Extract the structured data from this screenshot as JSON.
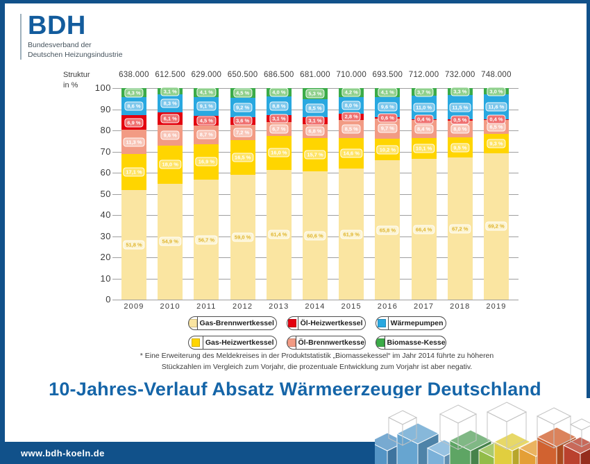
{
  "logo": {
    "acronym": "BDH",
    "subtitle_line1": "Bundesverband der",
    "subtitle_line2": "Deutschen Heizungsindustrie"
  },
  "axis_unit": {
    "line1": "Struktur",
    "line2": "in %"
  },
  "chart_data": {
    "type": "bar",
    "variant": "stacked-percent",
    "title": "10-Jahres-Verlauf Absatz Wärmeerzeuger Deutschland",
    "ylabel": "Struktur in %",
    "ylim": [
      0,
      100
    ],
    "yticks": [
      0,
      10,
      20,
      30,
      40,
      50,
      60,
      70,
      80,
      90,
      100
    ],
    "grid": true,
    "categories": [
      "2009",
      "2010",
      "2011",
      "2012",
      "2013",
      "2014",
      "2015",
      "2016",
      "2017",
      "2018",
      "2019"
    ],
    "totals": [
      "638.000",
      "612.500",
      "629.000",
      "650.500",
      "686.500",
      "681.000",
      "710.000",
      "693.500",
      "712.000",
      "732.000",
      "748.000"
    ],
    "value_suffix": " %",
    "series": [
      {
        "name": "Gas-Brennwertkessel",
        "color": "#FAE5A1",
        "pill_color": "#FCF4D3",
        "label_color": "#DFB42C",
        "values": [
          51.8,
          54.9,
          56.7,
          59.0,
          61.4,
          60.6,
          61.9,
          65.8,
          66.4,
          67.2,
          69.2
        ]
      },
      {
        "name": "Gas-Heizwertkessel",
        "color": "#FFD500",
        "pill_color": "#FFE466",
        "label_color": "#FFFFFF",
        "values": [
          17.1,
          18.0,
          16.9,
          16.5,
          16.0,
          15.7,
          14.6,
          10.2,
          10.1,
          9.5,
          9.3
        ]
      },
      {
        "name": "Öl-Brennwertkessel",
        "color": "#F29B84",
        "pill_color": "#F8C5B8",
        "label_color": "#FFFFFF",
        "values": [
          11.3,
          9.6,
          8.7,
          7.2,
          6.7,
          6.8,
          8.5,
          9.7,
          8.4,
          8.0,
          6.5
        ]
      },
      {
        "name": "Öl-Heizwertkessel",
        "color": "#E3000F",
        "pill_color": "#EF7070",
        "label_color": "#FFFFFF",
        "values": [
          6.9,
          6.1,
          4.5,
          3.6,
          3.1,
          3.1,
          2.8,
          0.6,
          0.4,
          0.5,
          0.4
        ]
      },
      {
        "name": "Wärmepumpen",
        "color": "#29A8E0",
        "pill_color": "#7FC8EC",
        "label_color": "#FFFFFF",
        "values": [
          8.6,
          8.3,
          9.1,
          9.2,
          8.8,
          8.5,
          8.0,
          9.6,
          11.0,
          11.5,
          11.6
        ]
      },
      {
        "name": "Biomasse-Kessel",
        "color": "#3BAB48",
        "pill_color": "#8FD08C",
        "label_color": "#FFFFFF",
        "values": [
          4.3,
          3.1,
          4.1,
          4.5,
          4.0,
          5.3,
          4.2,
          4.1,
          3.7,
          3.3,
          3.0
        ]
      }
    ],
    "legend_position": "bottom"
  },
  "legend": {
    "items": [
      {
        "label": "Gas-Brennwertkessel",
        "color": "#FAE5A1"
      },
      {
        "label": "Öl-Heizwertkessel",
        "color": "#E3000F"
      },
      {
        "label": "Wärmepumpen",
        "color": "#29A8E0"
      },
      {
        "label": "Gas-Heizwertkessel",
        "color": "#FFD500"
      },
      {
        "label": "Öl-Brennwertkessel",
        "color": "#F29B84"
      },
      {
        "label": "Biomasse-Kessel",
        "color": "#3BAB48"
      }
    ]
  },
  "footnote": {
    "line1": "* Eine Erweiterung des Meldekreises in der Produktstatistik „Biomassekessel“ im Jahr 2014 führte zu höheren",
    "line2": "Stückzahlen im Vergleich zum Vorjahr, die prozentuale Entwicklung zum Vorjahr ist aber negativ."
  },
  "title": "10-Jahres-Verlauf Absatz Wärmeerzeuger Deutschland",
  "footer": {
    "url": "www.bdh-koeln.de"
  },
  "colors": {
    "brand": "#135C9D",
    "frame": "#11518A",
    "footer_bg": "#11518A",
    "title_text": "#1565A8",
    "gridline": "#9E9E9E"
  }
}
